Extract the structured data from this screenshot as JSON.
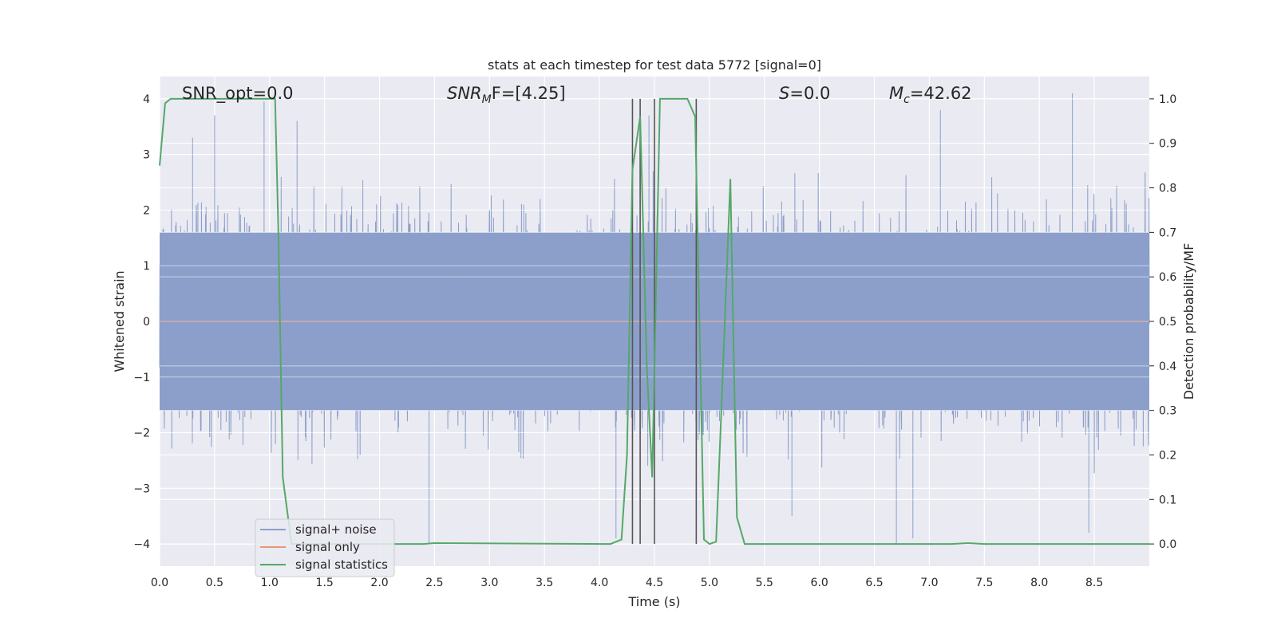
{
  "chart_data": {
    "type": "line",
    "title": "stats at each timestep for test data 5772 [signal=0]",
    "xlabel": "Time (s)",
    "ylabel_left": "Whitened strain",
    "ylabel_right": "Detection probability/MF",
    "xlim": [
      0.0,
      9.0
    ],
    "ylim_left": [
      -4.4,
      4.4
    ],
    "ylim_right": [
      -0.05,
      1.05
    ],
    "xticks": [
      0.0,
      0.5,
      1.0,
      1.5,
      2.0,
      2.5,
      3.0,
      3.5,
      4.0,
      4.5,
      5.0,
      5.5,
      6.0,
      6.5,
      7.0,
      7.5,
      8.0,
      8.5
    ],
    "xtick_labels": [
      "0.0",
      "0.5",
      "1.0",
      "1.5",
      "2.0",
      "2.5",
      "3.0",
      "3.5",
      "4.0",
      "4.5",
      "5.0",
      "5.5",
      "6.0",
      "6.5",
      "7.0",
      "7.5",
      "8.0",
      "8.5"
    ],
    "yticks_left": [
      -4,
      -3,
      -2,
      -1,
      0,
      1,
      2,
      3,
      4
    ],
    "ytick_labels_left": [
      "−4",
      "−3",
      "−2",
      "−1",
      "0",
      "1",
      "2",
      "3",
      "4"
    ],
    "yticks_right": [
      0.0,
      0.1,
      0.2,
      0.3,
      0.4,
      0.5,
      0.6,
      0.7,
      0.8,
      0.9,
      1.0
    ],
    "ytick_labels_right": [
      "0.0",
      "0.1",
      "0.2",
      "0.3",
      "0.4",
      "0.5",
      "0.6",
      "0.7",
      "0.8",
      "0.9",
      "1.0"
    ],
    "grid": true,
    "legend_position": "lower-left",
    "annotations": {
      "snr_opt": "SNR_opt=0.0",
      "snr_mf_sym": "SNR",
      "snr_mf_sub": "M",
      "snr_mf_rest": "F=[4.25]",
      "s_sym": "S",
      "s_rest": "=0.0",
      "mc_sym": "M",
      "mc_sub": "c",
      "mc_rest": "=42.62"
    },
    "colors": {
      "plot_bg": "#eaeaf2",
      "grid": "#ffffff",
      "noise": "#8c9fca",
      "signal_only": "#e8967a",
      "statistics": "#55a868",
      "vline": "#555555"
    },
    "series": [
      {
        "name": "signal+ noise",
        "axis": "left",
        "amplitude_band": [
          -1.6,
          1.6
        ],
        "typical_peak": [
          -2.6,
          2.6
        ],
        "extreme_peaks": [
          [
            0.3,
            3.3
          ],
          [
            0.5,
            3.7
          ],
          [
            0.95,
            3.95
          ],
          [
            1.25,
            3.6
          ],
          [
            2.45,
            -4.0
          ],
          [
            4.15,
            -3.9
          ],
          [
            4.45,
            3.7
          ],
          [
            5.75,
            -3.5
          ],
          [
            6.7,
            -4.0
          ],
          [
            6.85,
            -3.9
          ],
          [
            7.1,
            3.8
          ],
          [
            8.3,
            4.1
          ],
          [
            8.45,
            -3.8
          ]
        ]
      },
      {
        "name": "signal only",
        "axis": "left",
        "x": [
          0.0,
          9.0
        ],
        "y": [
          0.0,
          0.0
        ]
      },
      {
        "name": "signal statistics",
        "axis": "right",
        "x": [
          0.0,
          0.05,
          0.1,
          0.2,
          0.5,
          1.0,
          1.05,
          1.08,
          1.12,
          1.2,
          2.4,
          2.5,
          4.1,
          4.2,
          4.25,
          4.3,
          4.37,
          4.43,
          4.48,
          4.55,
          4.8,
          4.87,
          4.95,
          5.0,
          5.06,
          5.1,
          5.19,
          5.25,
          5.32,
          7.2,
          7.35,
          7.5,
          8.5,
          9.0
        ],
        "y": [
          0.85,
          0.99,
          1.0,
          1.0,
          1.0,
          1.0,
          1.0,
          0.7,
          0.15,
          0.0,
          0.0,
          0.002,
          0.0,
          0.01,
          0.2,
          0.84,
          0.96,
          0.4,
          0.15,
          1.0,
          1.0,
          0.96,
          0.01,
          0.0,
          0.005,
          0.25,
          0.82,
          0.06,
          0.0,
          0.0,
          0.002,
          0.0,
          0.0,
          0.0
        ]
      }
    ],
    "vlines": [
      4.3,
      4.37,
      4.5,
      4.88
    ],
    "legend": [
      "signal+ noise",
      "signal only",
      "signal statistics"
    ]
  }
}
